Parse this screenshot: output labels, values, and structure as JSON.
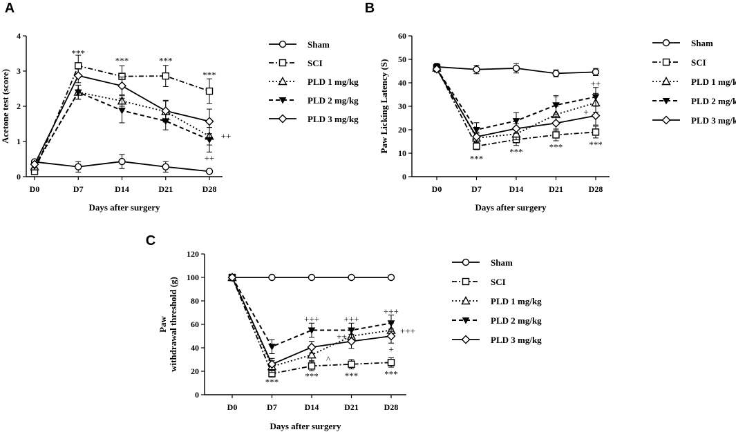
{
  "chart_data": [
    {
      "panel": "A",
      "type": "line",
      "xlabel": "Days after surgery",
      "ylabel": "Acetone test (score)",
      "categories": [
        "D0",
        "D7",
        "D14",
        "D21",
        "D28"
      ],
      "ylim": [
        0,
        4
      ],
      "yticks": [
        "0",
        "1",
        "2",
        "3",
        "4"
      ],
      "series": [
        {
          "name": "Sham",
          "values": [
            0.42,
            0.28,
            0.43,
            0.28,
            0.15
          ],
          "errors": [
            0.06,
            0.15,
            0.2,
            0.15,
            0.05
          ]
        },
        {
          "name": "SCI",
          "values": [
            0.15,
            3.15,
            2.85,
            2.86,
            2.43
          ],
          "errors": [
            0.05,
            0.3,
            0.3,
            0.3,
            0.35
          ]
        },
        {
          "name": "PLD 1 mg/kg",
          "values": [
            0.28,
            2.4,
            2.15,
            1.85,
            1.15
          ],
          "errors": [
            0.05,
            0.2,
            0.15,
            0.3,
            0.25
          ]
        },
        {
          "name": "PLD 2 mg/kg",
          "values": [
            0.3,
            2.4,
            1.88,
            1.58,
            1.05
          ],
          "errors": [
            0.05,
            0.2,
            0.35,
            0.25,
            0.35
          ]
        },
        {
          "name": "PLD 3 mg/kg",
          "values": [
            0.35,
            2.87,
            2.58,
            1.87,
            1.57
          ],
          "errors": [
            0.05,
            0.2,
            0.25,
            0.3,
            0.35
          ]
        }
      ],
      "annotations": [
        {
          "text": "***",
          "x": "D7",
          "y": 3.5
        },
        {
          "text": "***",
          "x": "D14",
          "y": 3.28
        },
        {
          "text": "***",
          "x": "D21",
          "y": 3.28
        },
        {
          "text": "***",
          "x": "D28",
          "y": 2.88
        },
        {
          "text": "++",
          "x": "D21",
          "y": 1.62
        },
        {
          "text": "++",
          "x": "D28",
          "y": 0.52
        },
        {
          "text": "++",
          "x": "D28+",
          "y": 1.15
        }
      ]
    },
    {
      "panel": "B",
      "type": "line",
      "xlabel": "Days after surgery",
      "ylabel": "Paw Licking Latency (S)",
      "categories": [
        "D0",
        "D7",
        "D14",
        "D21",
        "D28"
      ],
      "ylim": [
        0,
        60
      ],
      "yticks": [
        "0",
        "10",
        "20",
        "30",
        "40",
        "50",
        "60"
      ],
      "series": [
        {
          "name": "Sham",
          "values": [
            46.8,
            45.7,
            46.2,
            44.0,
            44.6
          ],
          "errors": [
            1.5,
            1.8,
            2.0,
            1.5,
            1.5
          ]
        },
        {
          "name": "SCI",
          "values": [
            46.5,
            13.0,
            15.8,
            17.8,
            19.0
          ],
          "errors": [
            1.2,
            1.5,
            2.5,
            2.5,
            2.5
          ]
        },
        {
          "name": "PLD 1 mg/kg",
          "values": [
            46.3,
            16.5,
            18.2,
            26.5,
            31.5
          ],
          "errors": [
            1.2,
            2.0,
            2.5,
            3.5,
            4.0
          ]
        },
        {
          "name": "PLD 2 mg/kg",
          "values": [
            46.0,
            20.0,
            23.8,
            30.5,
            34.0
          ],
          "errors": [
            1.2,
            3.0,
            3.5,
            4.0,
            4.0
          ]
        },
        {
          "name": "PLD 3 mg/kg",
          "values": [
            45.8,
            17.0,
            20.5,
            22.8,
            26.0
          ],
          "errors": [
            1.2,
            2.0,
            2.0,
            3.0,
            4.0
          ]
        }
      ],
      "annotations": [
        {
          "text": "***",
          "x": "D7",
          "y": 7.5
        },
        {
          "text": "***",
          "x": "D14",
          "y": 10.5
        },
        {
          "text": "***",
          "x": "D21",
          "y": 12.5
        },
        {
          "text": "***",
          "x": "D28",
          "y": 13.5
        },
        {
          "text": "+",
          "x": "D21",
          "y": 34.0
        },
        {
          "text": "++",
          "x": "D28",
          "y": 39.5
        },
        {
          "text": "+",
          "x": "D28-",
          "y": 27.5
        }
      ]
    },
    {
      "panel": "C",
      "type": "line",
      "xlabel": "Days after surgery",
      "ylabel": [
        "Paw",
        "withdrawal threshold (g)"
      ],
      "categories": [
        "D0",
        "D7",
        "D14",
        "D21",
        "D28"
      ],
      "ylim": [
        0,
        120
      ],
      "yticks": [
        "0",
        "20",
        "40",
        "60",
        "80",
        "100",
        "120"
      ],
      "series": [
        {
          "name": "Sham",
          "values": [
            100,
            100,
            100,
            100,
            100
          ],
          "errors": [
            0,
            0,
            0,
            0,
            0
          ]
        },
        {
          "name": "SCI",
          "values": [
            100,
            18,
            24.5,
            26,
            27.5
          ],
          "errors": [
            0,
            3,
            4,
            4,
            4
          ]
        },
        {
          "name": "PLD 1 mg/kg",
          "values": [
            100,
            24,
            34,
            50,
            55
          ],
          "errors": [
            0,
            5,
            5,
            5,
            6
          ]
        },
        {
          "name": "PLD 2 mg/kg",
          "values": [
            100,
            41,
            55,
            55,
            61
          ],
          "errors": [
            0,
            6,
            6,
            6,
            7
          ]
        },
        {
          "name": "PLD 3 mg/kg",
          "values": [
            100,
            26,
            40.5,
            45.5,
            50
          ],
          "errors": [
            0,
            5,
            5,
            6,
            6
          ]
        }
      ],
      "annotations": [
        {
          "text": "***",
          "x": "D7",
          "y": 10.5
        },
        {
          "text": "***",
          "x": "D14",
          "y": 15.5
        },
        {
          "text": "***",
          "x": "D21",
          "y": 16.0
        },
        {
          "text": "***",
          "x": "D28",
          "y": 17.5
        },
        {
          "text": "+++",
          "x": "D14",
          "y": 64.5
        },
        {
          "text": "+++",
          "x": "D21",
          "y": 64.5
        },
        {
          "text": "+++",
          "x": "D28",
          "y": 71.0
        },
        {
          "text": "++",
          "x": "D21-",
          "y": 49.5
        },
        {
          "text": "+++",
          "x": "D28+",
          "y": 54.0
        },
        {
          "text": "+",
          "x": "D28",
          "y": 38.5
        },
        {
          "text": "^",
          "x": "D14+",
          "y": 30.0
        }
      ]
    }
  ],
  "legend": [
    "Sham",
    "SCI",
    "PLD 1 mg/kg",
    "PLD 2 mg/kg",
    "PLD 3 mg/kg"
  ]
}
